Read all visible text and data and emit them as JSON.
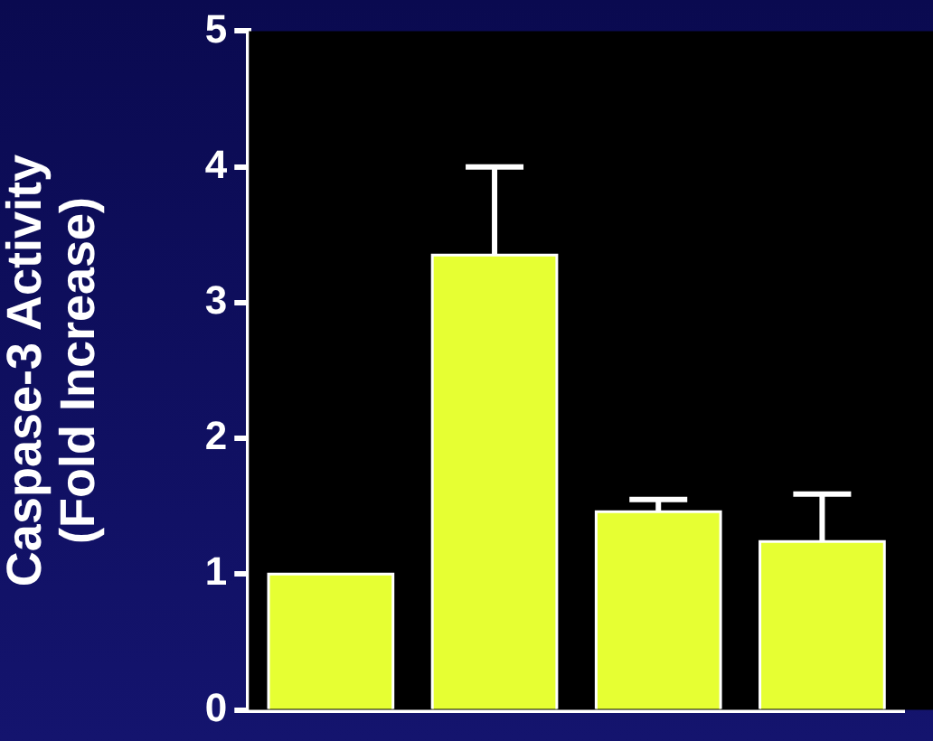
{
  "chart_data": {
    "type": "bar",
    "ylabel": "Caspase-3 Activity\n(Fold Increase)",
    "categories": [
      null,
      null,
      null,
      null
    ],
    "values": [
      1.0,
      3.35,
      1.46,
      1.24
    ],
    "errors": [
      null,
      [
        3.35,
        4.0
      ],
      [
        1.46,
        1.55
      ],
      [
        1.24,
        1.59
      ]
    ],
    "color": "#e6ff33",
    "ylim": [
      0,
      5
    ],
    "yticks": [
      0,
      1,
      2,
      3,
      4,
      5
    ],
    "grid": false,
    "legend": false
  }
}
